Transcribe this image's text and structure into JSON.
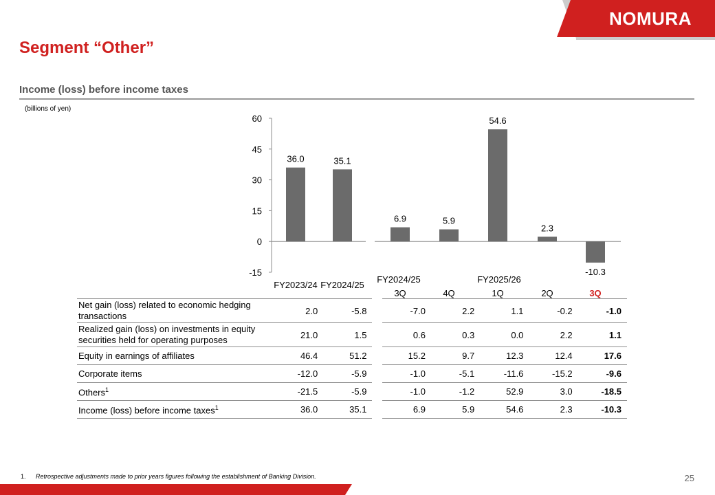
{
  "brand": {
    "logo_text": "NOMURA",
    "accent": "#d0201f"
  },
  "page": {
    "title": "Segment “Other”",
    "subtitle": "Income (loss) before income taxes",
    "units": "(billions of yen)",
    "page_number": "25"
  },
  "footnote": {
    "number": "1.",
    "text": "Retrospective adjustments made to prior years figures following the establishment of Banking Division."
  },
  "chart_data": {
    "type": "bar",
    "categories": [
      "FY2023/24",
      "FY2024/25",
      "3Q",
      "4Q",
      "1Q",
      "2Q",
      "3Q"
    ],
    "values": [
      36.0,
      35.1,
      6.9,
      5.9,
      54.6,
      2.3,
      -10.3
    ],
    "value_labels": [
      "36.0",
      "35.1",
      "6.9",
      "5.9",
      "54.6",
      "2.3",
      "-10.3"
    ],
    "group_labels": [
      {
        "label": "FY2024/25",
        "applies_to": [
          "3Q",
          "4Q"
        ]
      },
      {
        "label": "FY2025/26",
        "applies_to": [
          "1Q",
          "2Q",
          "3Q"
        ]
      }
    ],
    "highlight_category_index": 6,
    "highlight_color": "#d0201f",
    "bar_color": "#6b6b6b",
    "ylim": [
      -15,
      60
    ],
    "yticks": [
      -15,
      0,
      15,
      30,
      45,
      60
    ],
    "ytick_labels": [
      "-15",
      "0",
      "15",
      "30",
      "45",
      "60"
    ],
    "grid": false
  },
  "table": {
    "rows": [
      {
        "label": "Net gain (loss) related to economic hedging transactions",
        "sup": "",
        "values": [
          "2.0",
          "-5.8",
          "-7.0",
          "2.2",
          "1.1",
          "-0.2",
          "-1.0"
        ]
      },
      {
        "label": "Realized gain (loss) on investments in equity securities held for operating purposes",
        "sup": "",
        "values": [
          "21.0",
          "1.5",
          "0.6",
          "0.3",
          "0.0",
          "2.2",
          "1.1"
        ]
      },
      {
        "label": "Equity in earnings of affiliates",
        "sup": "",
        "values": [
          "46.4",
          "51.2",
          "15.2",
          "9.7",
          "12.3",
          "12.4",
          "17.6"
        ]
      },
      {
        "label": "Corporate items",
        "sup": "",
        "values": [
          "-12.0",
          "-5.9",
          "-1.0",
          "-5.1",
          "-11.6",
          "-15.2",
          "-9.6"
        ]
      },
      {
        "label": "Others",
        "sup": "1",
        "values": [
          "-21.5",
          "-5.9",
          "-1.0",
          "-1.2",
          "52.9",
          "3.0",
          "-18.5"
        ]
      },
      {
        "label": "Income (loss) before income taxes",
        "sup": "1",
        "values": [
          "36.0",
          "35.1",
          "6.9",
          "5.9",
          "54.6",
          "2.3",
          "-10.3"
        ]
      }
    ]
  }
}
